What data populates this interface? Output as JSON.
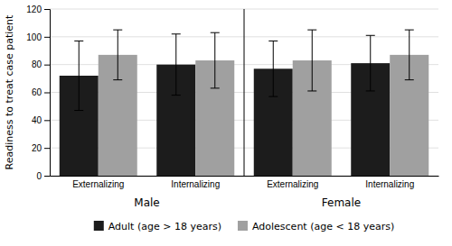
{
  "chart_data": {
    "type": "bar",
    "ylabel": "Readiness to treat case patient",
    "categories": [
      "Externalizing",
      "Internalizing",
      "Externalizing",
      "Internalizing"
    ],
    "annotations": [
      "Male",
      "Female"
    ],
    "series": [
      {
        "name": "Adult (age > 18 years)",
        "color": "#1c1c1c",
        "values": [
          72,
          80,
          77,
          81
        ],
        "errors": [
          25,
          22,
          20,
          20
        ]
      },
      {
        "name": "Adolescent (age < 18 years)",
        "color": "#a0a0a0",
        "values": [
          87,
          83,
          83,
          87
        ],
        "errors": [
          18,
          20,
          22,
          18
        ]
      }
    ],
    "ylim": [
      0,
      120
    ],
    "yticks": [
      0,
      20,
      40,
      60,
      80,
      100,
      120
    ],
    "grid": true,
    "legend": "bottom"
  }
}
